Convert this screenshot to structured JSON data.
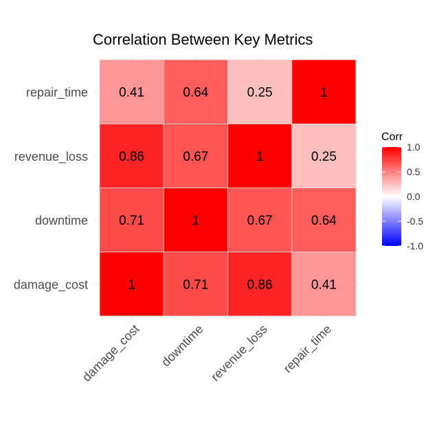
{
  "chart_data": {
    "type": "heatmap",
    "title": "Correlation Between Key Metrics",
    "xlabel": "",
    "ylabel": "",
    "x_categories": [
      "damage_cost",
      "downtime",
      "revenue_loss",
      "repair_time"
    ],
    "y_categories": [
      "damage_cost",
      "downtime",
      "revenue_loss",
      "repair_time"
    ],
    "values": [
      [
        1,
        0.71,
        0.86,
        0.41
      ],
      [
        0.71,
        1,
        0.67,
        0.64
      ],
      [
        0.86,
        0.67,
        1,
        0.25
      ],
      [
        0.41,
        0.64,
        0.25,
        1
      ]
    ],
    "cell_labels": [
      [
        "1",
        "0.71",
        "0.86",
        "0.41"
      ],
      [
        "0.71",
        "1",
        "0.67",
        "0.64"
      ],
      [
        "0.86",
        "0.67",
        "1",
        "0.25"
      ],
      [
        "0.41",
        "0.64",
        "0.25",
        "1"
      ]
    ],
    "legend": {
      "title": "Corr",
      "ticks": [
        "1.0",
        "0.5",
        "0.0",
        "-0.5",
        "-1.0"
      ],
      "tick_values": [
        1.0,
        0.5,
        0.0,
        -0.5,
        -1.0
      ],
      "range": [
        -1,
        1
      ],
      "placement": "right"
    },
    "colors": {
      "low": "#0000ff",
      "mid": "#ffffff",
      "high": "#ff0000"
    },
    "grid": true
  }
}
